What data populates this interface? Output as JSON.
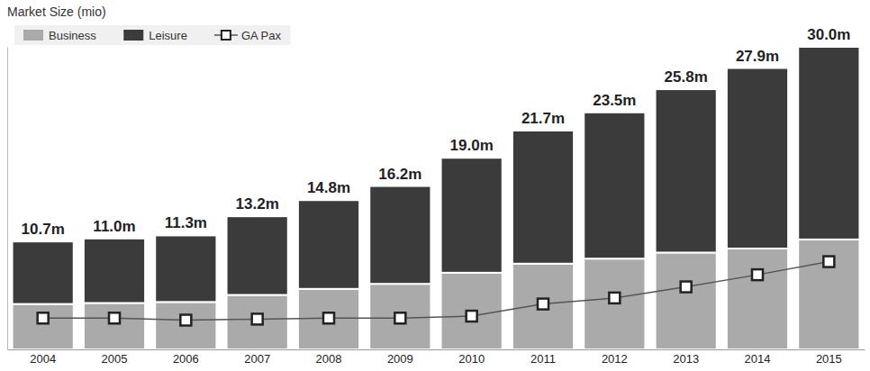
{
  "chart_data": {
    "type": "bar",
    "title": "Market Size (mio)",
    "stacked": true,
    "legend": "upper left",
    "tick_labels": "x",
    "categories": [
      "2004",
      "2005",
      "2006",
      "2007",
      "2008",
      "2009",
      "2010",
      "2011",
      "2012",
      "2013",
      "2014",
      "2015"
    ],
    "series": [
      {
        "name": "Business",
        "color": "#aaaaaa",
        "values": [
          4.5,
          4.6,
          4.7,
          5.4,
          6.0,
          6.5,
          7.6,
          8.5,
          9.0,
          9.6,
          10.0,
          10.9
        ]
      },
      {
        "name": "Leisure",
        "color": "#3b3b3b",
        "values": [
          6.2,
          6.4,
          6.6,
          7.8,
          8.8,
          9.7,
          11.4,
          13.2,
          14.5,
          16.2,
          17.9,
          19.1
        ]
      },
      {
        "name": "GA Pax",
        "type": "line",
        "color": "#555555",
        "marker": "square",
        "line_style": "solid",
        "values": [
          3.1,
          3.1,
          2.9,
          3.0,
          3.1,
          3.1,
          3.3,
          4.5,
          5.1,
          6.2,
          7.4,
          8.7
        ]
      }
    ],
    "totals": [
      10.7,
      11.0,
      11.3,
      13.2,
      14.8,
      16.2,
      19.0,
      21.7,
      23.5,
      25.8,
      27.9,
      30.0
    ],
    "total_labels": [
      "10.7m",
      "11.0m",
      "11.3m",
      "13.2m",
      "14.8m",
      "16.2m",
      "19.0m",
      "21.7m",
      "23.5m",
      "25.8m",
      "27.9m",
      "30.0m"
    ],
    "ylim": [
      0,
      30
    ]
  }
}
